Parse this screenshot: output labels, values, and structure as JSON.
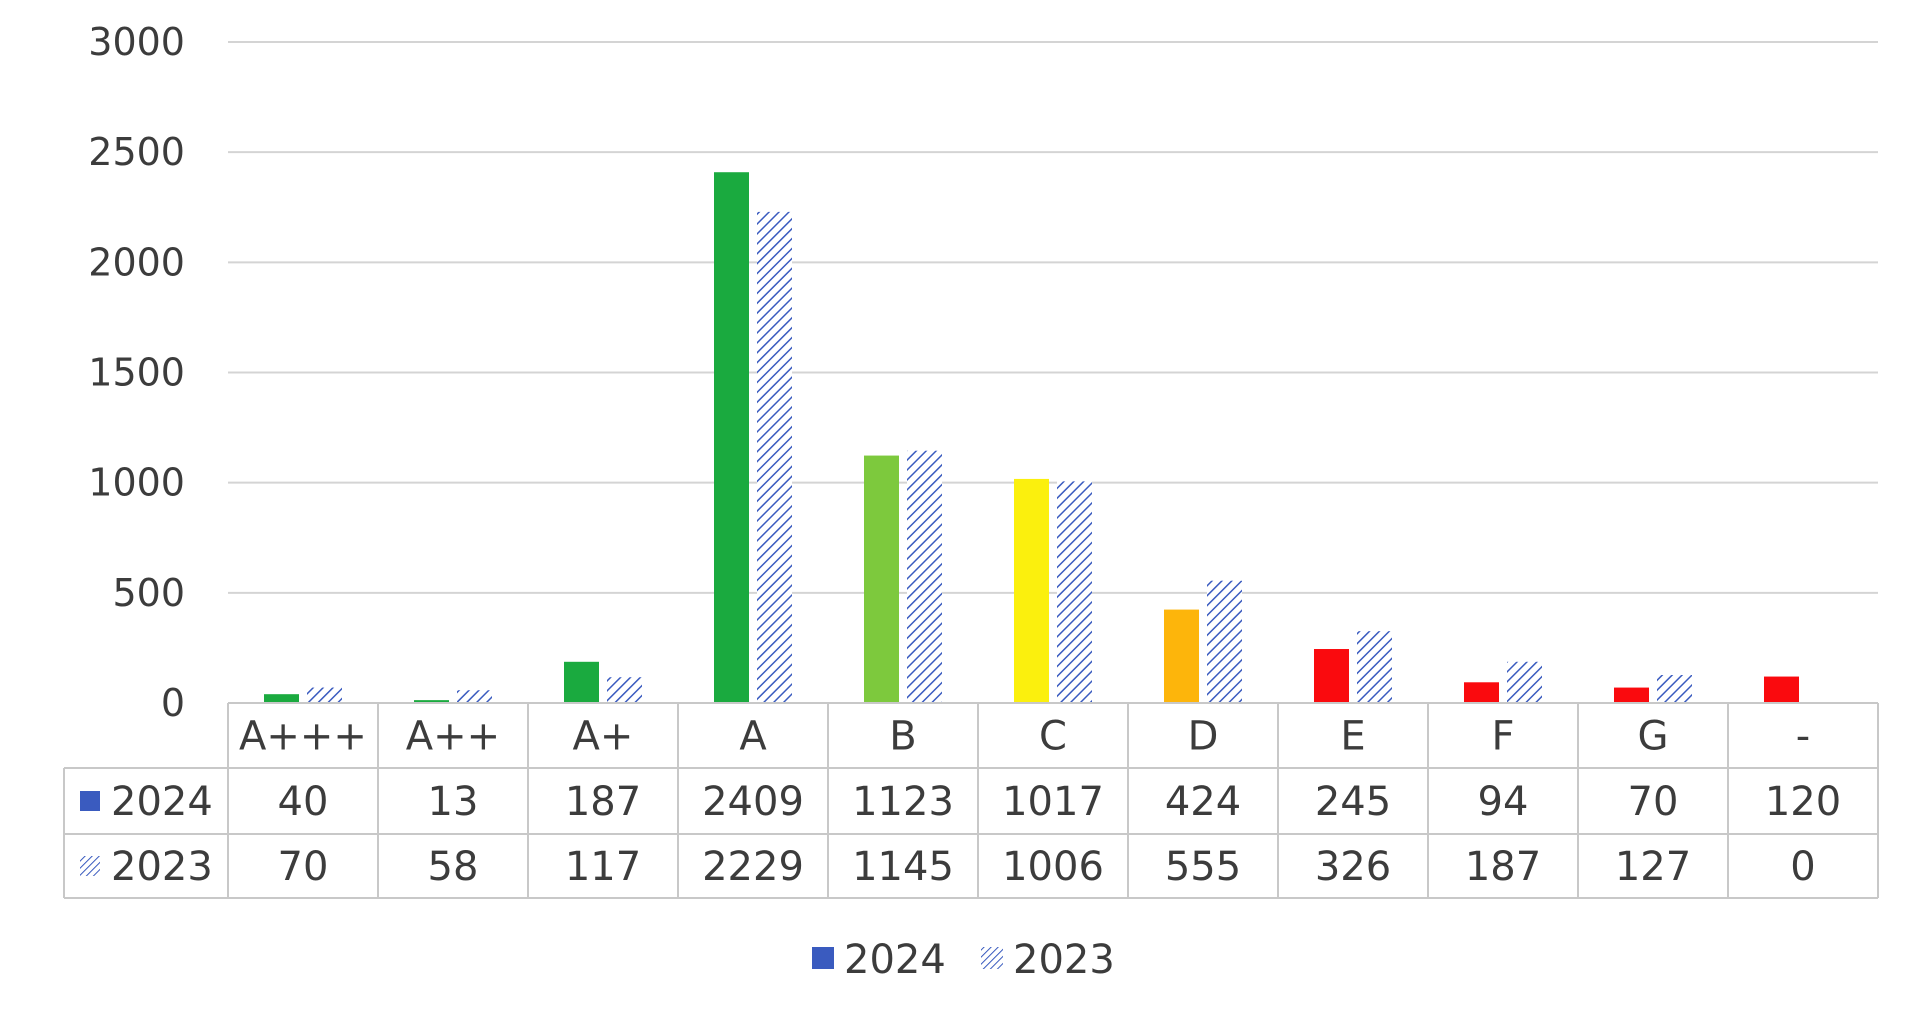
{
  "chart_data": {
    "type": "bar",
    "categories": [
      "A+++",
      "A++",
      "A+",
      "A",
      "B",
      "C",
      "D",
      "E",
      "F",
      "G",
      "-"
    ],
    "series": [
      {
        "name": "2024",
        "values": [
          40,
          13,
          187,
          2409,
          1123,
          1017,
          424,
          245,
          94,
          70,
          120
        ],
        "legend_color": "#3a5bbf",
        "bar_colors": [
          "#1aaa3f",
          "#1aaa3f",
          "#1aaa3f",
          "#1aaa3f",
          "#7dc93d",
          "#fbf00d",
          "#fdb50b",
          "#fa0a0e",
          "#fa0a0e",
          "#fa0a0e",
          "#fa0a0e"
        ]
      },
      {
        "name": "2023",
        "values": [
          70,
          58,
          117,
          2229,
          1145,
          1006,
          555,
          326,
          187,
          127,
          0
        ],
        "pattern": "diagonal-hatch",
        "color": "#3a5bbf"
      }
    ],
    "yticks": [
      0,
      500,
      1000,
      1500,
      2000,
      2500,
      3000
    ],
    "ylim": [
      0,
      3000
    ],
    "grid": true,
    "legend_position": "bottom",
    "data_table": true
  }
}
